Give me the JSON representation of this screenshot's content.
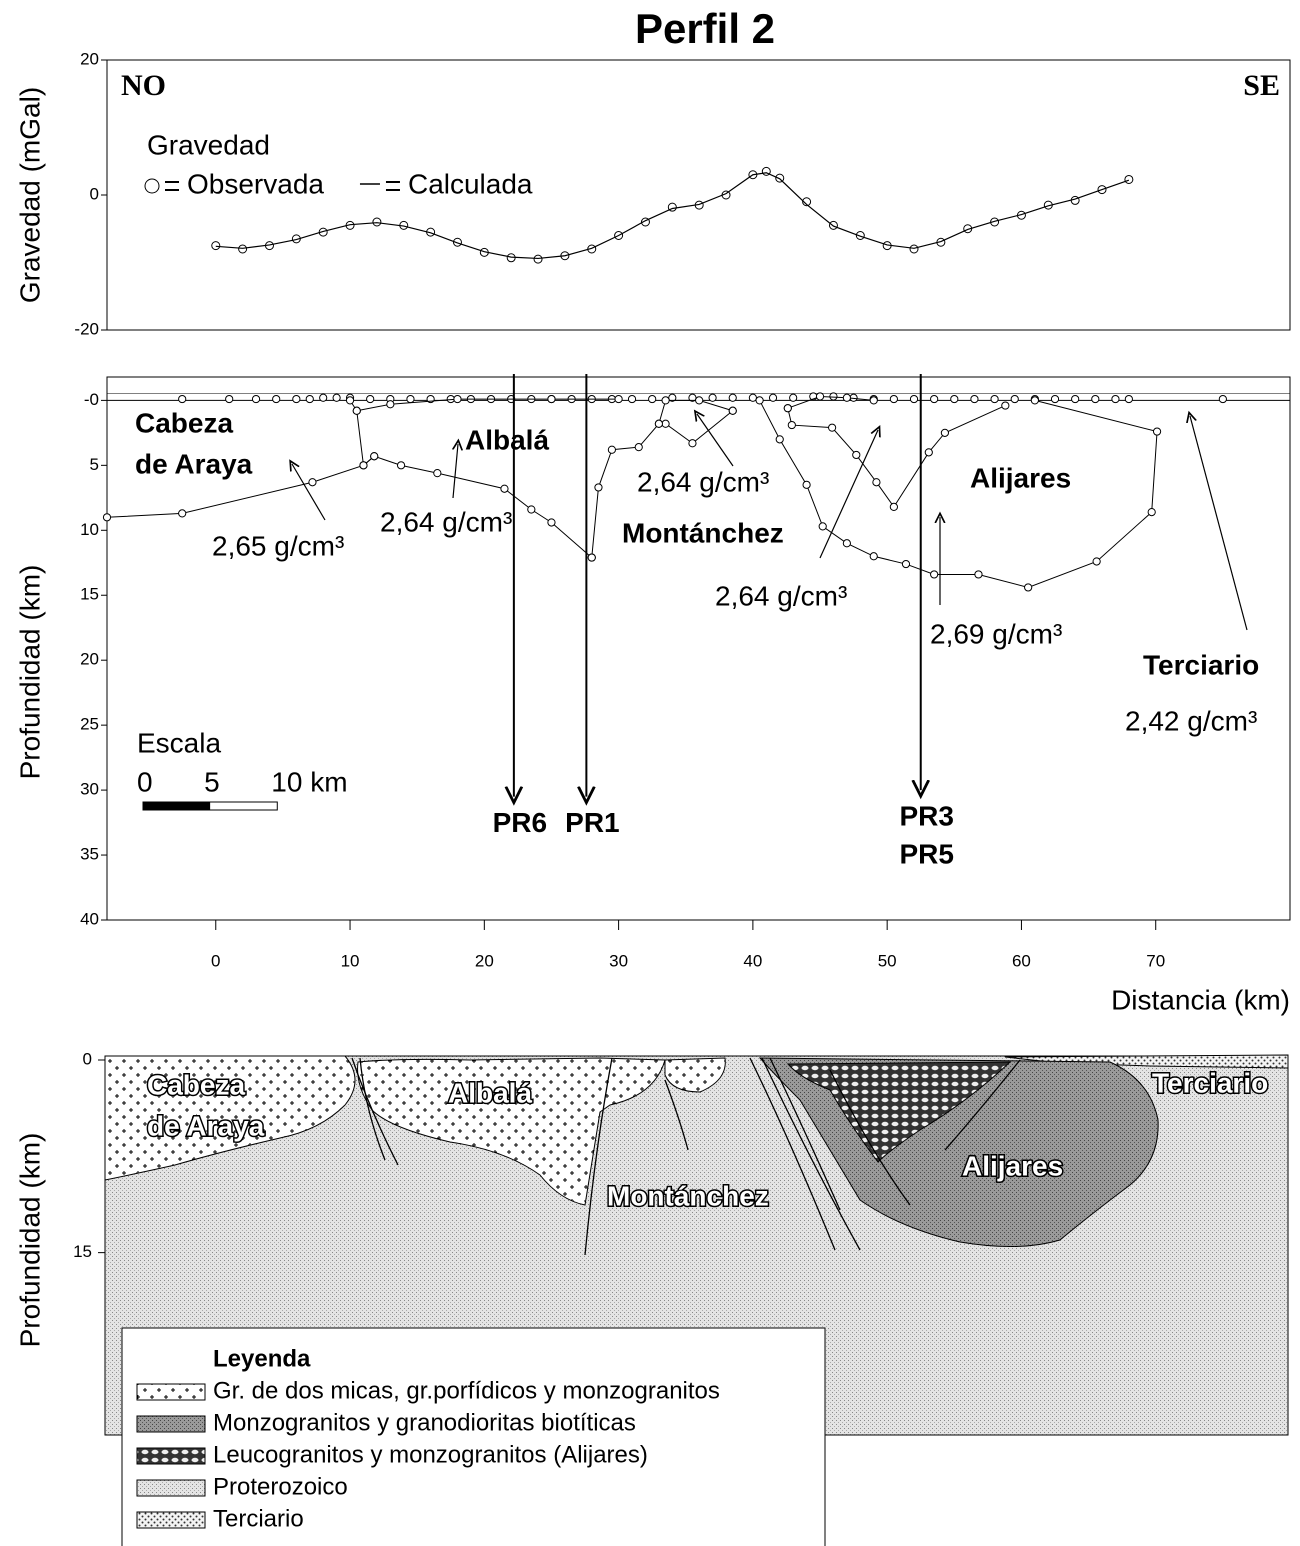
{
  "title": "Perfil 2",
  "chart_data": [
    {
      "type": "gravity",
      "ylabel": "Gravedad (mGal)",
      "corner_labels": [
        "NO",
        "SE"
      ],
      "legend_title": "Gravedad",
      "xlim": [
        -8.1,
        80
      ],
      "ylim": [
        -20,
        20
      ],
      "yticks": [
        -20,
        0,
        20
      ],
      "series": [
        {
          "name": "Observada",
          "marker": "circle",
          "color": "#000000",
          "x": [
            0,
            2,
            4,
            6,
            8,
            10,
            12,
            14,
            16,
            18,
            20,
            22,
            24,
            26,
            28,
            30,
            32,
            34,
            36,
            38,
            40,
            41,
            42,
            44,
            46,
            48,
            50,
            52,
            54,
            56,
            58,
            60,
            62,
            64,
            66,
            68
          ],
          "values": [
            -7.5,
            -8,
            -7.5,
            -6.5,
            -5.5,
            -4.5,
            -4,
            -4.5,
            -5.5,
            -7,
            -8.5,
            -9.3,
            -9.5,
            -9,
            -8,
            -6,
            -4,
            -1.8,
            -1.5,
            0,
            3,
            3.5,
            2.5,
            -1,
            -4.5,
            -6,
            -7.5,
            -8,
            -7,
            -5,
            -4,
            -3,
            -1.5,
            -0.8,
            0.8,
            2.3
          ]
        },
        {
          "name": "Calculada",
          "marker": "none",
          "color": "#000000",
          "x": [
            0,
            2,
            4,
            6,
            8,
            10,
            12,
            14,
            16,
            18,
            20,
            22,
            24,
            26,
            28,
            30,
            32,
            34,
            36,
            38,
            40,
            41,
            42,
            44,
            46,
            48,
            50,
            52,
            54,
            56,
            58,
            60,
            62,
            64,
            66,
            68
          ],
          "values": [
            -7.6,
            -7.9,
            -7.4,
            -6.6,
            -5.4,
            -4.4,
            -4.1,
            -4.6,
            -5.6,
            -7.1,
            -8.4,
            -9.2,
            -9.4,
            -9,
            -7.9,
            -6,
            -3.8,
            -2,
            -1.4,
            0.2,
            3,
            3.3,
            2.4,
            -1.4,
            -4.6,
            -6.1,
            -7.4,
            -7.9,
            -6.9,
            -5.1,
            -3.9,
            -2.9,
            -1.6,
            -0.6,
            0.8,
            2.2
          ]
        }
      ]
    },
    {
      "type": "model",
      "ylabel": "Profundidad (km)",
      "xlabel": "Distancia (km)",
      "xlim": [
        -8.1,
        80
      ],
      "ylim": [
        -1.8,
        40
      ],
      "y_inverted": true,
      "xticks": [
        0,
        10,
        20,
        30,
        40,
        50,
        60,
        70
      ],
      "yticks": [
        {
          "value": 0,
          "label": "-0"
        },
        5,
        10,
        15,
        20,
        25,
        30,
        35,
        40
      ],
      "series": [
        {
          "x": [
            -2.5,
            1,
            3,
            4.5,
            6,
            7,
            8,
            9,
            10,
            11.5,
            13,
            14.5,
            16,
            17.5,
            19,
            20.5,
            22,
            23.5,
            25,
            26.5,
            28,
            29.5,
            31,
            32.5,
            34,
            35.5,
            37,
            38.5,
            40,
            41.5,
            43,
            44.5,
            46,
            47.5,
            49,
            50.5,
            52,
            53.5,
            55,
            56.5,
            58,
            59.5,
            61,
            62.5,
            64,
            65.5,
            67,
            68,
            75
          ],
          "values": [
            -0.1,
            -0.1,
            -0.1,
            -0.1,
            -0.1,
            -0.1,
            -0.2,
            -0.2,
            -0.2,
            -0.1,
            -0.1,
            -0.1,
            -0.1,
            -0.1,
            -0.1,
            -0.1,
            -0.1,
            -0.1,
            -0.1,
            -0.1,
            -0.1,
            -0.1,
            -0.1,
            -0.1,
            -0.2,
            -0.2,
            -0.2,
            -0.2,
            -0.2,
            -0.2,
            -0.2,
            -0.3,
            -0.3,
            -0.2,
            -0.1,
            -0.1,
            -0.1,
            -0.1,
            -0.1,
            -0.1,
            -0.1,
            -0.1,
            -0.1,
            -0.1,
            -0.1,
            -0.1,
            -0.1,
            -0.1,
            -0.1
          ]
        },
        {
          "x": [
            -8.1,
            -2.5,
            7.2,
            11,
            11.8,
            13.8,
            16.5,
            21.5,
            23.5,
            25,
            28
          ],
          "values": [
            9,
            8.7,
            6.3,
            5,
            4.3,
            5,
            5.6,
            6.8,
            8.4,
            9.4,
            12.1
          ]
        },
        {
          "x": [
            10,
            10.5,
            11,
            11.8
          ],
          "values": [
            0,
            0.8,
            5,
            4.3
          ]
        },
        {
          "x": [
            10.5,
            13,
            18,
            25,
            30
          ],
          "values": [
            0.8,
            0.3,
            -0.1,
            -0.1,
            -0.1
          ]
        },
        {
          "x": [
            28,
            28.5,
            29.5,
            31.5,
            33,
            33.5,
            35.5,
            38.5
          ],
          "values": [
            12.1,
            6.7,
            3.8,
            3.6,
            1.8,
            1.8,
            3.3,
            0.8
          ]
        },
        {
          "x": [
            33,
            33.5,
            36,
            38.5
          ],
          "values": [
            1.8,
            0,
            0,
            0.8
          ]
        },
        {
          "x": [
            40.5,
            42,
            44,
            45.2,
            47,
            49,
            51.4,
            53.5,
            56.8,
            60.5,
            65.6,
            69.7,
            70.1,
            61
          ],
          "values": [
            0,
            3,
            6.5,
            9.7,
            11,
            12,
            12.6,
            13.4,
            13.4,
            14.4,
            12.4,
            8.6,
            2.4,
            0
          ]
        },
        {
          "x": [
            42.6,
            42.9,
            45.9,
            47.7,
            49.2,
            50.5,
            53.1,
            54.3,
            58.8
          ],
          "values": [
            0.6,
            1.9,
            2.1,
            4.2,
            6.3,
            8.2,
            4,
            2.5,
            0.4
          ]
        },
        {
          "x": [
            42.6,
            45,
            47,
            49
          ],
          "values": [
            0.6,
            -0.3,
            -0.2,
            0
          ]
        }
      ],
      "labels": [
        "Cabeza",
        "de Araya",
        "Albalá",
        "Montánchez",
        "Alijares",
        "Terciario"
      ],
      "densities": [
        "2,65 g/cm³",
        "2,64 g/cm³",
        "2,64 g/cm³",
        "2,64 g/cm³",
        "2,69 g/cm³",
        "2,42 g/cm³"
      ],
      "wells": [
        {
          "x": 22.2,
          "depth": 30.5,
          "labels": [
            "PR6"
          ]
        },
        {
          "x": 27.6,
          "depth": 30.5,
          "labels": [
            "PR1"
          ]
        },
        {
          "x": 52.5,
          "depth": 30,
          "labels": [
            "PR3",
            "PR5"
          ]
        }
      ],
      "scale": {
        "title": "Escala",
        "labels": [
          "0",
          "5",
          "10 km"
        ],
        "length_km": 10
      }
    }
  ],
  "section": {
    "ylabel": "Profundidad (km)",
    "ylim": [
      0,
      29.2
    ],
    "yticks": [
      0,
      15
    ],
    "labels": [
      "Cabeza",
      "de Araya",
      "Albalá",
      "Montánchez",
      "Alijares",
      "Terciario"
    ],
    "legend": {
      "title": "Leyenda",
      "items": [
        "Gr. de dos micas, gr.porfídicos y monzogranitos",
        "Monzogranitos y granodioritas biotíticas",
        "Leucogranitos y monzogranitos (Alijares)",
        "Proterozoico",
        "Terciario"
      ]
    }
  }
}
